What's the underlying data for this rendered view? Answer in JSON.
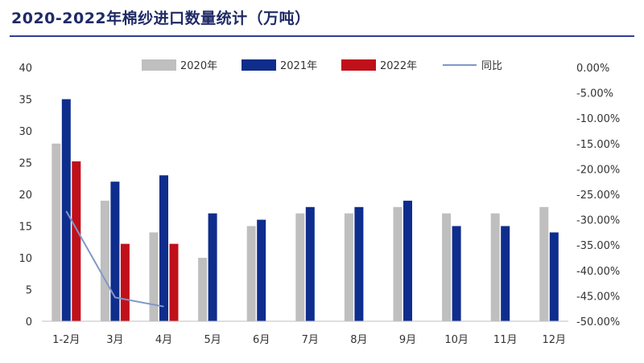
{
  "title": "2020-2022年棉纱进口数量统计（万吨）",
  "chart_data": {
    "type": "bar",
    "categories": [
      "1-2月",
      "3月",
      "4月",
      "5月",
      "6月",
      "7月",
      "8月",
      "9月",
      "10月",
      "11月",
      "12月"
    ],
    "series": [
      {
        "name": "2020年",
        "color": "#bfbfbf",
        "values": [
          28,
          19,
          14,
          10,
          15,
          17,
          17,
          18,
          17,
          17,
          18
        ]
      },
      {
        "name": "2021年",
        "color": "#0f2d8c",
        "values": [
          35,
          22,
          23,
          17,
          16,
          18,
          18,
          19,
          15,
          15,
          14
        ]
      },
      {
        "name": "2022年",
        "color": "#c0101a",
        "values": [
          25.2,
          12.2,
          12.2,
          null,
          null,
          null,
          null,
          null,
          null,
          null,
          null
        ]
      }
    ],
    "line_series": {
      "name": "同比",
      "color": "#7f97c8",
      "axis": "right",
      "values": [
        -28.3,
        -45.3,
        -47.1,
        null,
        null,
        null,
        null,
        null,
        null,
        null,
        null
      ]
    },
    "y_left": {
      "ylim": [
        0,
        40
      ],
      "ticks": [
        "0",
        "5",
        "10",
        "15",
        "20",
        "25",
        "30",
        "35",
        "40"
      ]
    },
    "y_right": {
      "ylim": [
        -50,
        0
      ],
      "ticks": [
        "0.00%",
        "-5.00%",
        "-10.00%",
        "-15.00%",
        "-20.00%",
        "-25.00%",
        "-30.00%",
        "-35.00%",
        "-40.00%",
        "-45.00%",
        "-50.00%"
      ]
    },
    "legend_position": "top",
    "grid": false
  }
}
